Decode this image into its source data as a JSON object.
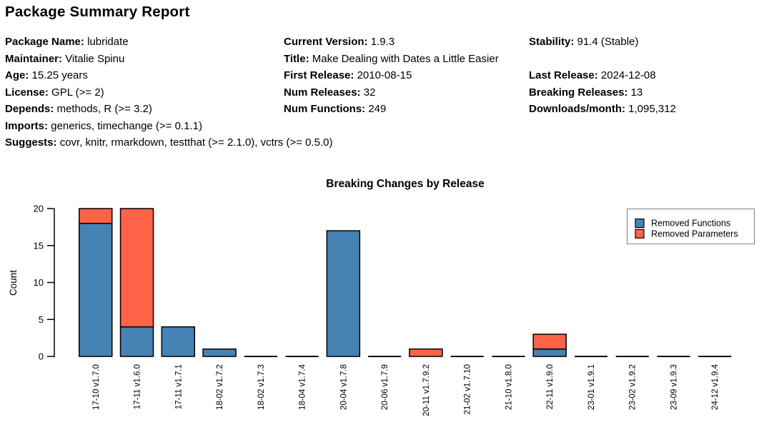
{
  "report": {
    "title": "Package Summary Report"
  },
  "metadata_rows": [
    [
      {
        "label": "Package Name:",
        "value": "lubridate"
      },
      {
        "label": "Current Version:",
        "value": "1.9.3"
      },
      {
        "label": "Stability:",
        "value": "91.4 (Stable)"
      }
    ],
    [
      {
        "label": "Maintainer:",
        "value": "Vitalie Spinu"
      },
      {
        "label": "Title:",
        "value": "Make Dealing with Dates a Little Easier"
      },
      null
    ],
    [
      {
        "label": "Age:",
        "value": "15.25 years"
      },
      {
        "label": "First Release:",
        "value": "2010-08-15"
      },
      {
        "label": "Last Release:",
        "value": "2024-12-08"
      }
    ],
    [
      {
        "label": "License:",
        "value": "GPL (>= 2)"
      },
      {
        "label": "Num Releases:",
        "value": "32"
      },
      {
        "label": "Breaking Releases:",
        "value": "13"
      }
    ],
    [
      {
        "label": "Depends:",
        "value": "methods, R (>= 3.2)"
      },
      {
        "label": "Num Functions:",
        "value": "249"
      },
      {
        "label": "Downloads/month:",
        "value": "1,095,312"
      }
    ],
    [
      {
        "label": "Imports:",
        "value": "generics, timechange (>= 0.1.1)"
      },
      null,
      null
    ],
    [
      {
        "label": "Suggests:",
        "value": "covr, knitr, rmarkdown, testthat (>= 2.1.0), vctrs (>= 0.5.0)"
      },
      null,
      null
    ]
  ],
  "chart_data": {
    "type": "bar",
    "stacked": true,
    "title": "Breaking Changes by Release",
    "xlabel": "",
    "ylabel": "Count",
    "categories": [
      "17-10 v1.7.0",
      "17-11 v1.6.0",
      "17-11 v1.7.1",
      "18-02 v1.7.2",
      "18-02 v1.7.3",
      "18-04 v1.7.4",
      "20-04 v1.7.8",
      "20-06 v1.7.9",
      "20-11 v1.7.9.2",
      "21-02 v1.7.10",
      "21-10 v1.8.0",
      "22-11 v1.9.0",
      "23-01 v1.9.1",
      "23-02 v1.9.2",
      "23-09 v1.9.3",
      "24-12 v1.9.4"
    ],
    "series": [
      {
        "name": "Removed Functions",
        "color": "#4682B4",
        "values": [
          18,
          4,
          4,
          1,
          0,
          0,
          17,
          0,
          0,
          0,
          0,
          1,
          0,
          0,
          0,
          0
        ]
      },
      {
        "name": "Removed Parameters",
        "color": "#FF6347",
        "values": [
          2,
          16,
          0,
          0,
          0,
          0,
          0,
          0,
          1,
          0,
          0,
          2,
          0,
          0,
          0,
          0
        ]
      }
    ],
    "ylim": [
      0,
      20
    ],
    "yticks": [
      0,
      5,
      10,
      15,
      20
    ],
    "grid": false,
    "legend_position": "upper right",
    "bar_edge_color": "#000000",
    "legend_border_color": "#808080",
    "axis_color": "#000000"
  }
}
